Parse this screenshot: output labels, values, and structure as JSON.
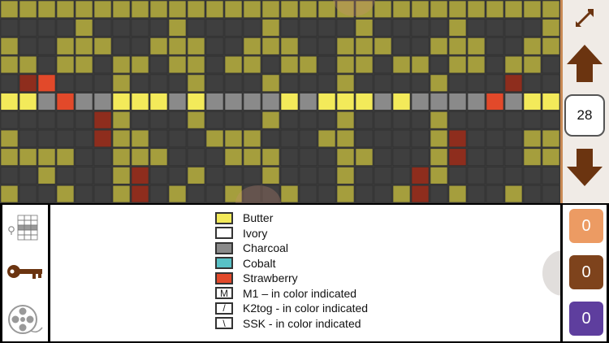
{
  "colors": {
    "olive": "#a59e3d",
    "olive_dark": "#6b6628",
    "dark": "#3f3f3f",
    "gridline": "#2e2e2e",
    "butter": "#f3ea5a",
    "charcoal": "#8a8a8a",
    "strawberry_dark": "#8e2d1d",
    "strawberry_bright": "#e2492a",
    "ivory": "#ffffff",
    "cobalt": "#58c1c6",
    "arrow": "#6b3410",
    "counter_1": "#ec9b63",
    "counter_2": "#7e431c",
    "counter_3": "#5e3e9e"
  },
  "chart": {
    "columns": 30,
    "rows": 11,
    "pattern_rows": [
      "OOOOOOOOOOOOOOOOOOOOOOOOOOOOOO",
      "DDDDODDDDODDDDODDDDODDDDODDDDO",
      "ODDOOODDOOODDOOODDOOODDOOODDOO",
      "OODOODOODOODOODOODOODOODOODOOD",
      "DDRDDDODDDODDDODDDODDDDODDDRDD",
      "BBCRCCBBBCBCCCCBCBBBCBCCCCRCBB",
      "DDDDDDODDDODDDODDDODDDDODDDDDD",
      "ODDDDOOODDDOOODDDOODDDDOODDDOO",
      "OOOODDOOODDDOOODDDOODDDOODDDOO",
      "DDODDDODDDODDDODDDODDDDODDDDDD",
      "ODDODDODDODDODDODDODDODDODDODD"
    ],
    "highlight_strawberry": [
      [
        1,
        4,
        "strawberry_dark"
      ],
      [
        3,
        5,
        "strawberry_bright"
      ],
      [
        27,
        4,
        "strawberry_dark"
      ],
      [
        26,
        5,
        "strawberry_bright"
      ],
      [
        5,
        6,
        "strawberry_dark"
      ],
      [
        5,
        7,
        "strawberry_dark"
      ],
      [
        7,
        9,
        "strawberry_dark"
      ],
      [
        7,
        10,
        "strawberry_dark"
      ],
      [
        22,
        9,
        "strawberry_dark"
      ],
      [
        22,
        10,
        "strawberry_dark"
      ],
      [
        24,
        7,
        "strawberry_dark"
      ],
      [
        24,
        8,
        "strawberry_dark"
      ]
    ]
  },
  "sidebar": {
    "expand_icon": "diagonal-expand-icon",
    "up_icon": "arrow-up-icon",
    "down_icon": "arrow-down-icon",
    "row_number": "28"
  },
  "tools": {
    "chart_icon": "mini-chart-icon",
    "key_icon": "key-icon",
    "yarn_icon": "yarn-reel-icon"
  },
  "legend": {
    "items": [
      {
        "label": "Butter",
        "color": "#f3ea5a",
        "symbol": ""
      },
      {
        "label": "Ivory",
        "color": "#ffffff",
        "symbol": ""
      },
      {
        "label": "Charcoal",
        "color": "#8a8a8a",
        "symbol": ""
      },
      {
        "label": "Cobalt",
        "color": "#58c1c6",
        "symbol": ""
      },
      {
        "label": "Strawberry",
        "color": "#e2492a",
        "symbol": ""
      },
      {
        "label": "M1 – in color indicated",
        "color": "#ffffff",
        "symbol": "M"
      },
      {
        "label": "K2tog - in color indicated",
        "color": "#ffffff",
        "symbol": "/"
      },
      {
        "label": "SSK - in color indicated",
        "color": "#ffffff",
        "symbol": "\\"
      }
    ]
  },
  "counters": [
    {
      "value": "0"
    },
    {
      "value": "0"
    },
    {
      "value": "0"
    }
  ]
}
